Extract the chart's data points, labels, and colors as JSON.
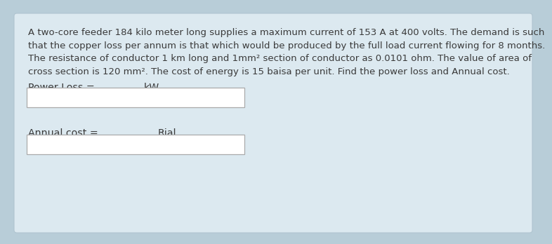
{
  "background_color": "#dce9f0",
  "outer_bg": "#b8cdd8",
  "inner_bg": "#dce9f0",
  "text_color": "#3a3a3a",
  "paragraph": "A two-core feeder 184 kilo meter long supplies a maximum current of 153 A at 400 volts. The demand is such that the copper loss per annum is that which would be produced by the full load current flowing for 8 months. The resistance of conductor 1 km long and 1mm² section of conductor as 0.0101 ohm. The value of area of cross section is 120 mm². The cost of energy is 15 baisa per unit. Find the power loss and Annual cost.",
  "label1": "Power Loss =",
  "unit1": "kW",
  "label2": "Annual cost =",
  "unit2": "Rial",
  "font_size_text": 9.5,
  "font_size_label": 10.2,
  "line1": "A two-core feeder 184 kilo meter long supplies a maximum current of 153 A at 400 volts. The demand is such",
  "line2": "that the copper loss per annum is that which would be produced by the full load current flowing for 8 months.",
  "line3": "The resistance of conductor 1 km long and 1mm² section of conductor as 0.0101 ohm. The value of area of",
  "line4": "cross section is 120 mm². The cost of energy is 15 baisa per unit. Find the power loss and Annual cost."
}
